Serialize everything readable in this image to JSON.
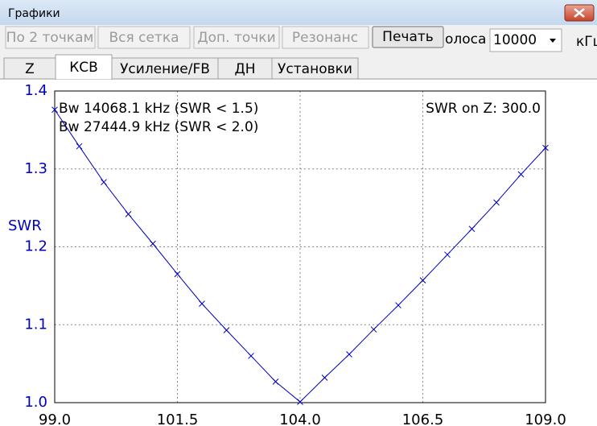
{
  "window": {
    "title": "Графики"
  },
  "toolbar": {
    "buttons": [
      "По 2 точкам",
      "Вся сетка",
      "Доп. точки",
      "Резонанс",
      "Печать"
    ],
    "band_label": "олоса",
    "band_value": "10000",
    "band_unit": "кГц"
  },
  "tabs": [
    "Z",
    "КСВ",
    "Усиление/FB",
    "ДН",
    "Установки"
  ],
  "chart_data": {
    "type": "line",
    "y_label": "SWR",
    "annotations": [
      "Bw 14068.1 kHz (SWR < 1.5)",
      "Bw 27444.9 kHz (SWR < 2.0)",
      "SWR on Z: 300.0"
    ],
    "x": [
      99.0,
      99.5,
      100.0,
      100.5,
      101.0,
      101.5,
      102.0,
      102.5,
      103.0,
      103.5,
      104.0,
      104.5,
      105.0,
      105.5,
      106.0,
      106.5,
      107.0,
      107.5,
      108.0,
      108.5,
      109.0
    ],
    "values": [
      1.376,
      1.329,
      1.283,
      1.242,
      1.204,
      1.165,
      1.127,
      1.093,
      1.06,
      1.027,
      1.001,
      1.032,
      1.062,
      1.094,
      1.125,
      1.157,
      1.19,
      1.223,
      1.257,
      1.293,
      1.327
    ],
    "color": "#0000c0",
    "marker": "x",
    "xlim": [
      99.0,
      109.0
    ],
    "xticks": [
      {
        "value": 99.0,
        "label": "99.0"
      },
      101.5,
      {
        "value": 104.0,
        "label": "104.0"
      },
      106.5,
      {
        "value": 109.0,
        "label": "109.0"
      }
    ],
    "ylim": [
      1.0,
      1.4
    ],
    "yticks": [
      {
        "value": 1.0,
        "label": "1.0"
      },
      1.1,
      1.2,
      1.3,
      1.4
    ],
    "grid": true
  }
}
